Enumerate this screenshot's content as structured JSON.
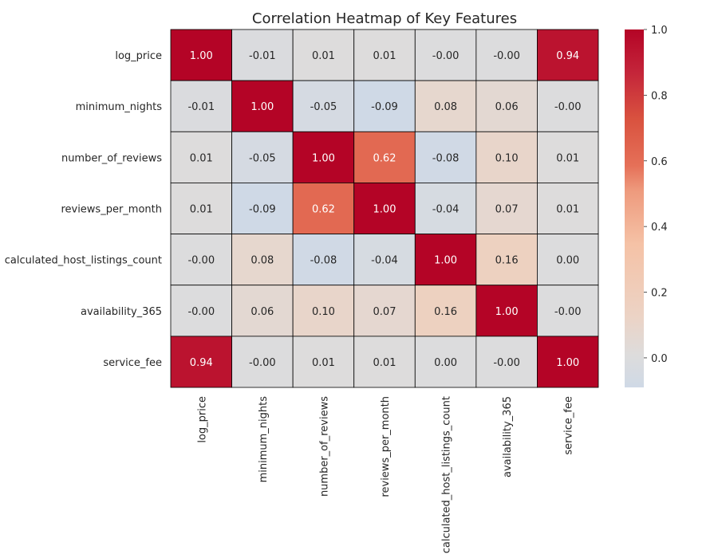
{
  "chart_data": {
    "type": "heatmap",
    "title": "Correlation Heatmap of Key Features",
    "row_labels": [
      "log_price",
      "minimum_nights",
      "number_of_reviews",
      "reviews_per_month",
      "calculated_host_listings_count",
      "availability_365",
      "service_fee"
    ],
    "col_labels": [
      "log_price",
      "minimum_nights",
      "number_of_reviews",
      "reviews_per_month",
      "calculated_host_listings_count",
      "availability_365",
      "service_fee"
    ],
    "values": [
      [
        1.0,
        -0.01,
        0.01,
        0.01,
        -0.001,
        -0.001,
        0.94
      ],
      [
        -0.01,
        1.0,
        -0.05,
        -0.09,
        0.08,
        0.06,
        -0.001
      ],
      [
        0.01,
        -0.05,
        1.0,
        0.62,
        -0.08,
        0.1,
        0.01
      ],
      [
        0.01,
        -0.09,
        0.62,
        1.0,
        -0.04,
        0.07,
        0.01
      ],
      [
        -0.001,
        0.08,
        -0.08,
        -0.04,
        1.0,
        0.16,
        0.001
      ],
      [
        -0.001,
        0.06,
        0.1,
        0.07,
        0.16,
        1.0,
        -0.001
      ],
      [
        0.94,
        -0.001,
        0.01,
        0.01,
        0.001,
        -0.001,
        1.0
      ]
    ],
    "annotations": [
      [
        "1.00",
        "-0.01",
        "0.01",
        "0.01",
        "-0.00",
        "-0.00",
        "0.94"
      ],
      [
        "-0.01",
        "1.00",
        "-0.05",
        "-0.09",
        "0.08",
        "0.06",
        "-0.00"
      ],
      [
        "0.01",
        "-0.05",
        "1.00",
        "0.62",
        "-0.08",
        "0.10",
        "0.01"
      ],
      [
        "0.01",
        "-0.09",
        "0.62",
        "1.00",
        "-0.04",
        "0.07",
        "0.01"
      ],
      [
        "-0.00",
        "0.08",
        "-0.08",
        "-0.04",
        "1.00",
        "0.16",
        "0.00"
      ],
      [
        "-0.00",
        "0.06",
        "0.10",
        "0.07",
        "0.16",
        "1.00",
        "-0.00"
      ],
      [
        "0.94",
        "-0.00",
        "0.01",
        "0.01",
        "0.00",
        "-0.00",
        "1.00"
      ]
    ],
    "colormap": "coolwarm",
    "colorbar": {
      "vmin": -0.09,
      "vmax": 1.0,
      "ticks": [
        0.0,
        0.2,
        0.4,
        0.6,
        0.8,
        1.0
      ],
      "tick_labels": [
        "0.0",
        "0.2",
        "0.4",
        "0.6",
        "0.8",
        "1.0"
      ]
    },
    "colors": {
      "low": "#cfd9e6",
      "mid": "#dddcdc",
      "high": "#b40426",
      "cell_border": "#000000",
      "text_dark": "#262626",
      "text_light": "#ffffff"
    },
    "grid": false,
    "legend": "colorbar-right"
  }
}
